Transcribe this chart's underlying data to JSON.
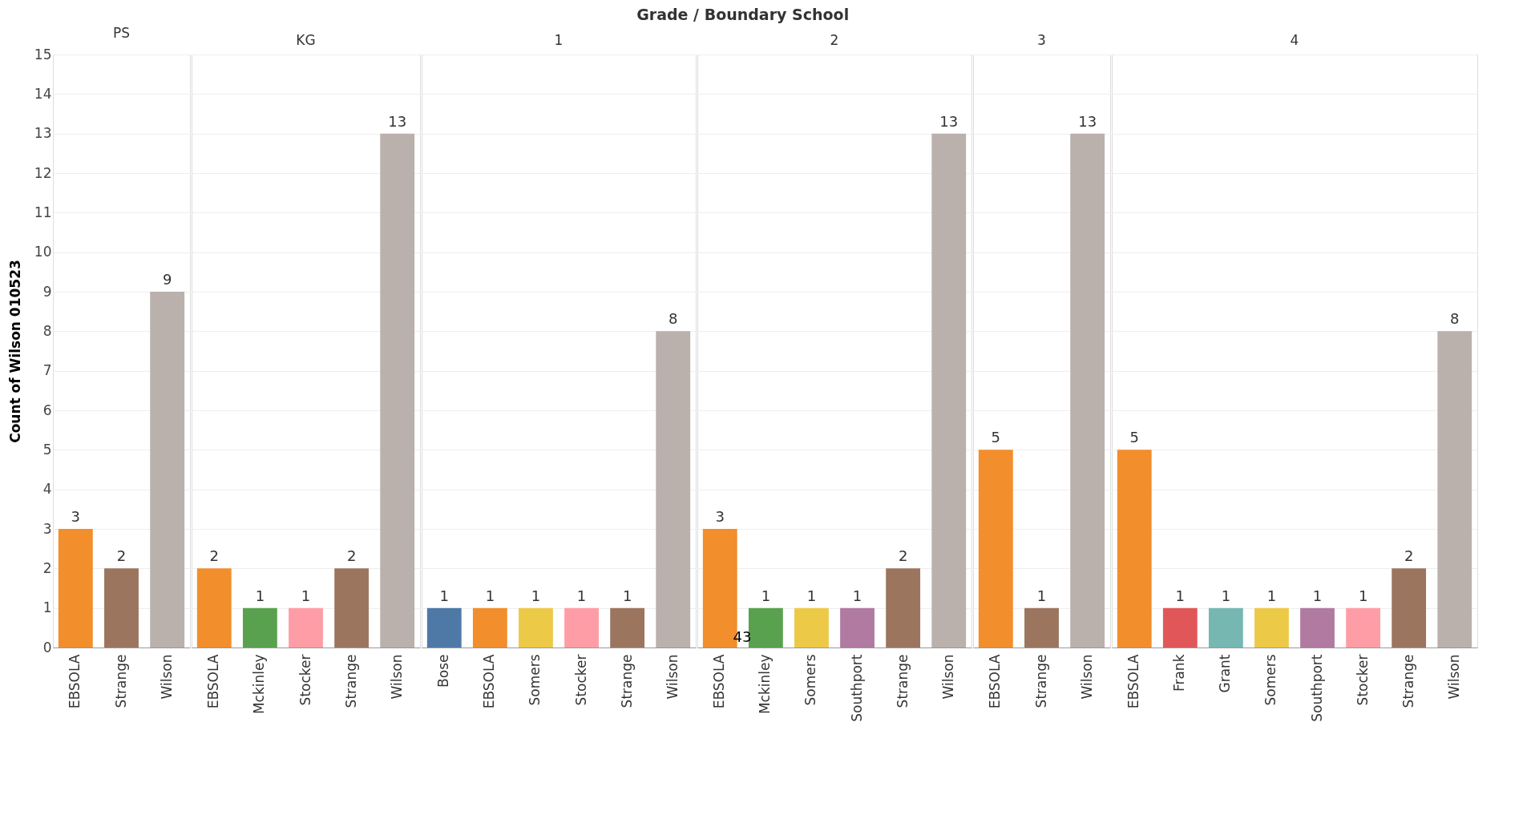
{
  "chart_data": [
    {
      "type": "bar",
      "title": "PS",
      "ylabel": "Count of Wilson 010523",
      "annotations": [
        "Grade / Boundary School"
      ],
      "categories": [
        "EBSOLA",
        "Strange",
        "Wilson"
      ],
      "values": [
        3,
        2,
        9
      ],
      "colors": [
        "#f28e2b",
        "#9c755f",
        "#bab0ac"
      ],
      "ylim": [
        0,
        15
      ],
      "yticks": [
        0,
        1,
        2,
        3,
        4,
        5,
        6,
        7,
        8,
        9,
        10,
        11,
        12,
        13,
        14,
        15
      ],
      "grid": "y",
      "data_labels": true
    },
    {
      "type": "bar",
      "title": "KG",
      "categories": [
        "EBSOLA",
        "Mckinley",
        "Stocker",
        "Strange",
        "Wilson"
      ],
      "values": [
        2,
        1,
        1,
        2,
        13
      ],
      "colors": [
        "#f28e2b",
        "#59a14f",
        "#ff9da7",
        "#9c755f",
        "#bab0ac"
      ],
      "ylim": [
        0,
        15
      ],
      "yticks": [
        0,
        1,
        2,
        3,
        4,
        5,
        6,
        7,
        8,
        9,
        10,
        11,
        12,
        13,
        14,
        15
      ],
      "grid": "y",
      "data_labels": true,
      "tick_labels": "x"
    },
    {
      "type": "bar",
      "title": "1",
      "categories": [
        "Bose",
        "EBSOLA",
        "Somers",
        "Stocker",
        "Strange",
        "Wilson"
      ],
      "values": [
        1,
        1,
        1,
        1,
        1,
        8
      ],
      "colors": [
        "#4e79a7",
        "#f28e2b",
        "#edc948",
        "#ff9da7",
        "#9c755f",
        "#bab0ac"
      ],
      "ylim": [
        0,
        15
      ],
      "yticks": [
        0,
        1,
        2,
        3,
        4,
        5,
        6,
        7,
        8,
        9,
        10,
        11,
        12,
        13,
        14,
        15
      ],
      "grid": "y",
      "data_labels": true,
      "tick_labels": "x"
    },
    {
      "type": "bar",
      "title": "2",
      "annotations": [
        "43"
      ],
      "categories": [
        "EBSOLA",
        "Mckinley",
        "Somers",
        "Southport",
        "Strange",
        "Wilson"
      ],
      "values": [
        3,
        1,
        1,
        1,
        2,
        13
      ],
      "colors": [
        "#f28e2b",
        "#59a14f",
        "#edc948",
        "#b07aa1",
        "#9c755f",
        "#bab0ac"
      ],
      "ylim": [
        0,
        15
      ],
      "yticks": [
        0,
        1,
        2,
        3,
        4,
        5,
        6,
        7,
        8,
        9,
        10,
        11,
        12,
        13,
        14,
        15
      ],
      "grid": "y",
      "data_labels": true,
      "tick_labels": "x"
    },
    {
      "type": "bar",
      "title": "3",
      "categories": [
        "EBSOLA",
        "Strange",
        "Wilson"
      ],
      "values": [
        5,
        1,
        13
      ],
      "colors": [
        "#f28e2b",
        "#9c755f",
        "#bab0ac"
      ],
      "ylim": [
        0,
        15
      ],
      "yticks": [
        0,
        1,
        2,
        3,
        4,
        5,
        6,
        7,
        8,
        9,
        10,
        11,
        12,
        13,
        14,
        15
      ],
      "grid": "y",
      "data_labels": true,
      "tick_labels": "x"
    },
    {
      "type": "bar",
      "title": "4",
      "categories": [
        "EBSOLA",
        "Frank",
        "Grant",
        "Somers",
        "Southport",
        "Stocker",
        "Strange",
        "Wilson"
      ],
      "values": [
        5,
        1,
        1,
        1,
        1,
        1,
        2,
        8
      ],
      "colors": [
        "#f28e2b",
        "#e15759",
        "#76b7b2",
        "#edc948",
        "#b07aa1",
        "#ff9da7",
        "#9c755f",
        "#bab0ac"
      ],
      "ylim": [
        0,
        15
      ],
      "yticks": [
        0,
        1,
        2,
        3,
        4,
        5,
        6,
        7,
        8,
        9,
        10,
        11,
        12,
        13,
        14,
        15
      ],
      "grid": "y",
      "data_labels": true,
      "tick_labels": "x"
    }
  ]
}
